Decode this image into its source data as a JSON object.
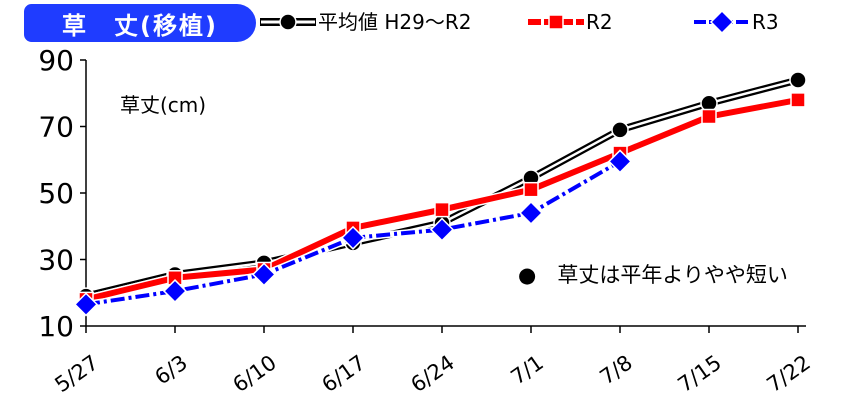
{
  "header": {
    "title": "草　丈(移植)"
  },
  "chart_data": {
    "type": "line",
    "title": "草　丈(移植)",
    "ylabel": "草丈(cm)",
    "xlabel": "",
    "categories": [
      "5/27",
      "6/3",
      "6/10",
      "6/17",
      "6/24",
      "7/1",
      "7/8",
      "7/15",
      "7/22"
    ],
    "ylim": [
      10,
      90
    ],
    "yticks": [
      10,
      30,
      50,
      70,
      90
    ],
    "grid": false,
    "legend_position": "top",
    "series": [
      {
        "name": "平均値 H29〜R2",
        "values": [
          19,
          25.5,
          29,
          35,
          41,
          54.5,
          69,
          77,
          84
        ],
        "color": "#000000",
        "marker": "circle",
        "style": "double-line"
      },
      {
        "name": "R2",
        "values": [
          18,
          24.5,
          27,
          39.5,
          45,
          51,
          62,
          73,
          78
        ],
        "color": "#ff0000",
        "marker": "square",
        "style": "dashed"
      },
      {
        "name": "R3",
        "values": [
          16.5,
          20.5,
          25.5,
          36.5,
          39,
          44,
          59.5,
          null,
          null
        ],
        "color": "#0000ff",
        "marker": "diamond",
        "style": "dash-dot"
      }
    ],
    "annotation": "●　草丈は平年よりやや短い"
  }
}
